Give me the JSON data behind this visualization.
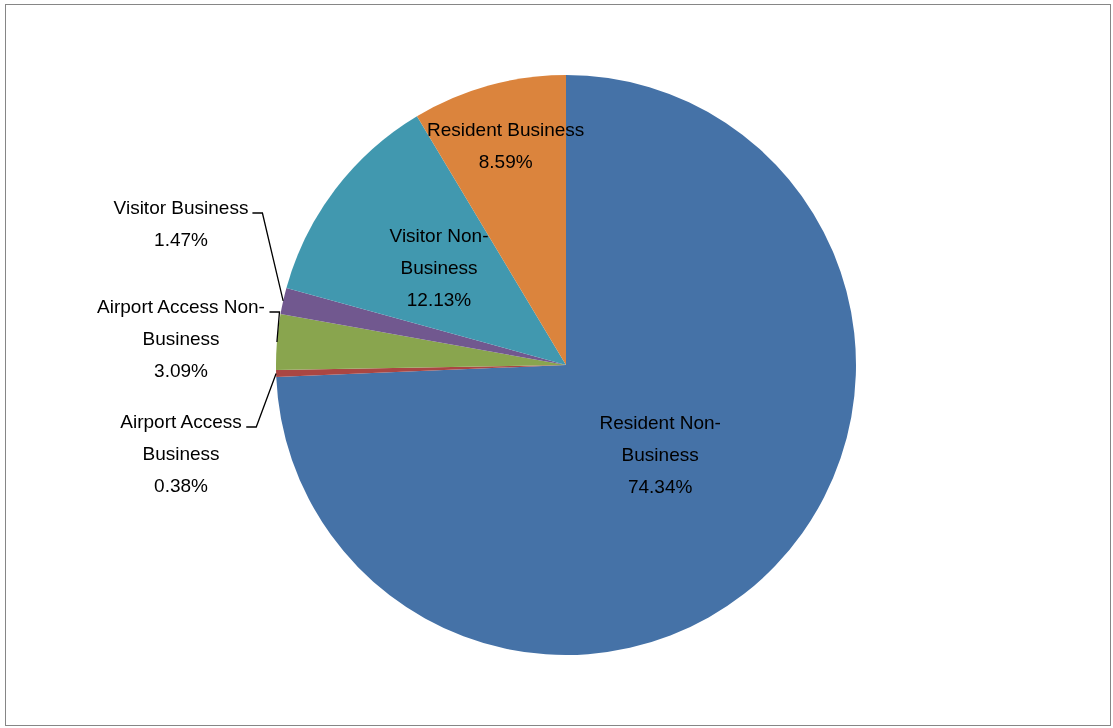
{
  "chart_data": {
    "type": "pie",
    "categories": [
      "Resident Non-Business",
      "Airport Access Business",
      "Airport Access Non-Business",
      "Visitor Business",
      "Visitor Non-Business",
      "Resident Business"
    ],
    "values": [
      74.34,
      0.38,
      3.09,
      1.47,
      12.13,
      8.59
    ],
    "value_labels": [
      "74.34%",
      "0.38%",
      "3.09%",
      "1.47%",
      "12.13%",
      "8.59%"
    ],
    "colors": [
      "#4572a7",
      "#aa4643",
      "#89a54e",
      "#71588f",
      "#4198af",
      "#db843d"
    ],
    "legend": false
  }
}
